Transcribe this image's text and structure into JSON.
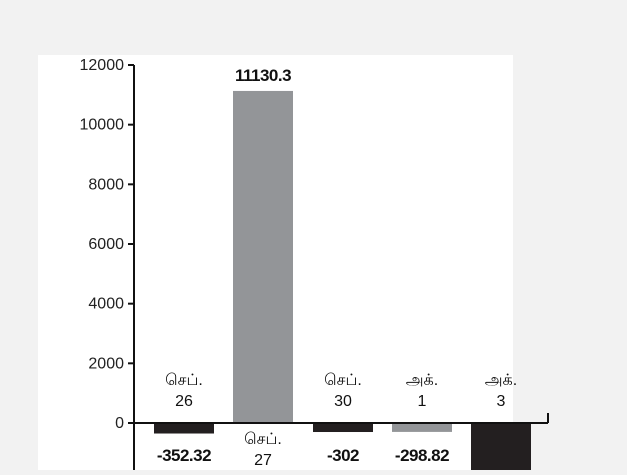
{
  "chart_data": {
    "type": "bar",
    "categories": [
      [
        "செப்.",
        "26"
      ],
      [
        "செப்.",
        "27"
      ],
      [
        "செப்.",
        "30"
      ],
      [
        "அக்.",
        "1"
      ],
      [
        "அக்.",
        "3"
      ]
    ],
    "values": [
      -352.32,
      11130.3,
      -302,
      -298.82,
      -1800
    ],
    "value_labels": [
      "-352.32",
      "11130.3",
      "-302",
      "-298.82",
      ""
    ],
    "bar_colors": [
      "#231f20",
      "#939598",
      "#231f20",
      "#939598",
      "#231f20"
    ],
    "ylim": [
      -1800,
      12000
    ],
    "yticks": [
      0,
      2000,
      4000,
      6000,
      8000,
      10000,
      12000
    ],
    "ytick_labels": [
      "0",
      "2000",
      "4000",
      "6000",
      "8000",
      "10000",
      "12000"
    ],
    "title": "",
    "xlabel": "",
    "ylabel": "",
    "grid": false,
    "legend": "none"
  },
  "colors": {
    "background": "#f2f2f2",
    "plot_background": "#ffffff",
    "axis": "#111111"
  }
}
